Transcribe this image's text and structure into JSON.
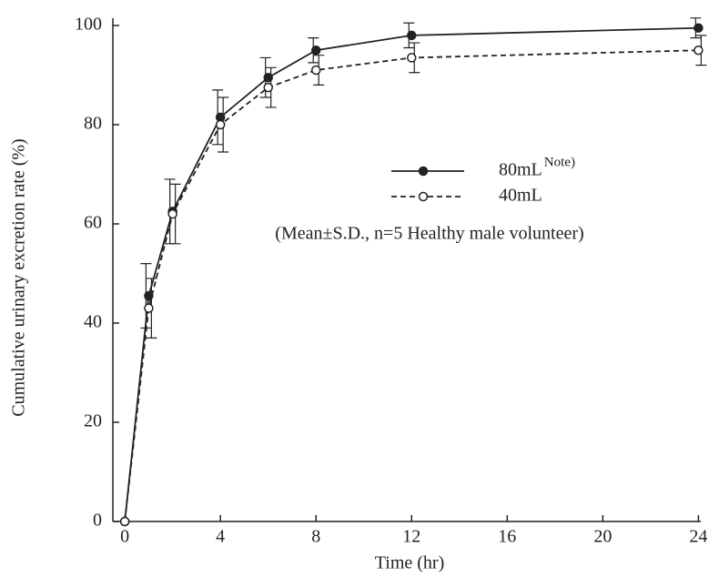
{
  "chart_data": {
    "type": "line",
    "xlabel": "Time (hr)",
    "ylabel": "Cumulative urinary excretion rate (%)",
    "annotation": "(Mean±S.D., n=5 Healthy male volunteer)",
    "legend_note": "Note)",
    "x": [
      0,
      1,
      2,
      4,
      6,
      8,
      12,
      24
    ],
    "series": [
      {
        "name": "80mL",
        "color": "#222222",
        "marker": "filled",
        "dash": false,
        "values": [
          0,
          45.5,
          62.5,
          81.5,
          89.5,
          95,
          98,
          99.5
        ],
        "errors": [
          null,
          6.5,
          6.5,
          5.5,
          4,
          2.5,
          2.5,
          2
        ]
      },
      {
        "name": "40mL",
        "color": "#222222",
        "marker": "open",
        "dash": true,
        "values": [
          0,
          43,
          62,
          80,
          87.5,
          91,
          93.5,
          95
        ],
        "errors": [
          null,
          6,
          6,
          5.5,
          4,
          3,
          3,
          3
        ]
      }
    ],
    "xlim": [
      -0.5,
      24.1
    ],
    "ylim": [
      0,
      100
    ],
    "xticks": [
      0,
      4,
      8,
      12,
      16,
      20,
      24
    ],
    "yticks": [
      0,
      20,
      40,
      60,
      80,
      100
    ],
    "grid": false
  }
}
